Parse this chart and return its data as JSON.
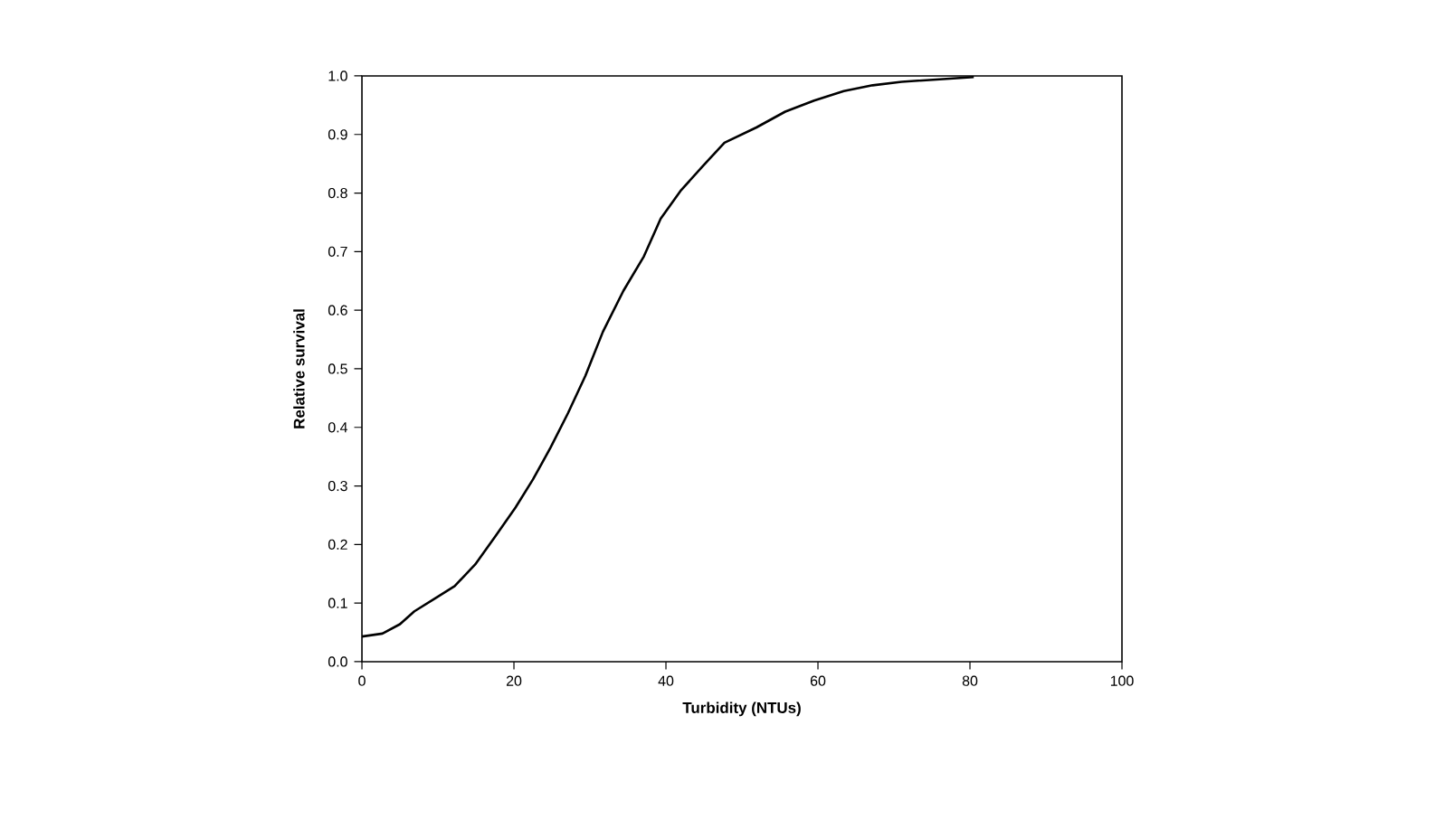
{
  "chart_data": {
    "type": "line",
    "xlabel": "Turbidity (NTUs)",
    "ylabel": "Relative survival",
    "x": [
      0,
      2.7,
      5,
      6.9,
      9.5,
      12.2,
      14.9,
      17.6,
      20.2,
      22.5,
      24.8,
      27.1,
      29.4,
      31.7,
      34.4,
      37.1,
      39.3,
      42.0,
      45.0,
      47.7,
      51.9,
      55.7,
      59.5,
      63.4,
      67.2,
      71.0,
      80.5
    ],
    "series": [
      {
        "color": "#000000",
        "values": [
          0.043,
          0.048,
          0.064,
          0.086,
          0.107,
          0.129,
          0.166,
          0.215,
          0.263,
          0.311,
          0.365,
          0.424,
          0.488,
          0.563,
          0.633,
          0.692,
          0.756,
          0.805,
          0.848,
          0.886,
          0.912,
          0.939,
          0.958,
          0.974,
          0.984,
          0.99,
          0.998
        ]
      }
    ],
    "xlim": [
      0,
      100
    ],
    "ylim": [
      0,
      1.0
    ],
    "xticks": [
      0,
      20,
      40,
      60,
      80,
      100
    ],
    "yticks": [
      {
        "value": 0,
        "label": "0.0"
      },
      0.1,
      0.2,
      0.3,
      0.4,
      0.5,
      0.6,
      0.7,
      0.8,
      0.9,
      {
        "value": 1,
        "label": "1.0"
      }
    ],
    "grid": false,
    "marker": "none",
    "line_style": "solid"
  }
}
